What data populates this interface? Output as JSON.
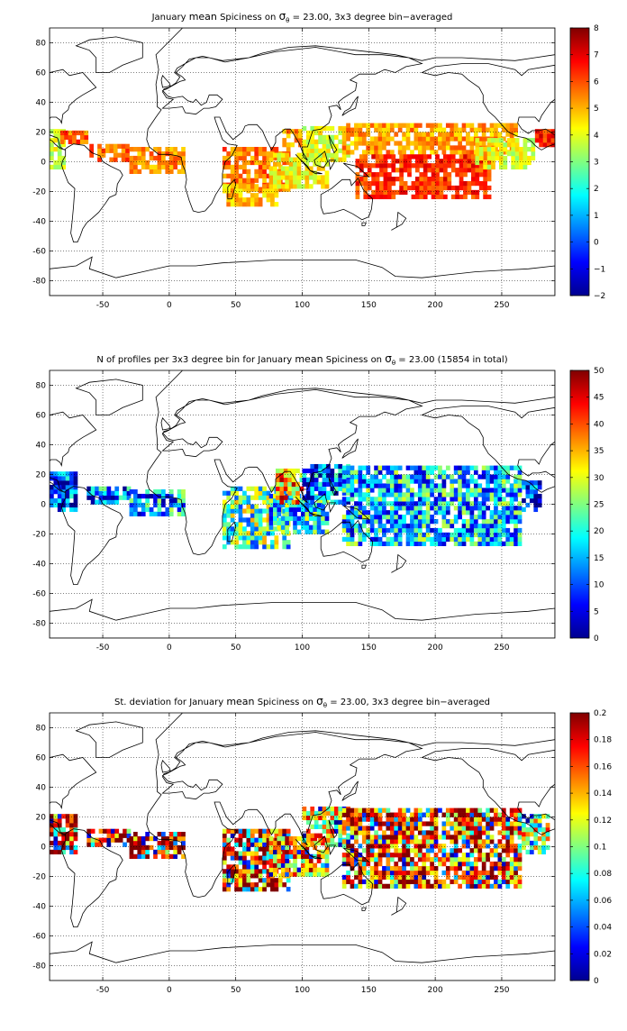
{
  "chart_data": [
    {
      "type": "heatmap",
      "title": {
        "pre": "January ",
        "mean": "mean",
        "mid": " Spiciness on ",
        "sigma": "σ",
        "sub": "θ",
        "post": " = 23.00, 3x3 degree bin−averaged"
      },
      "xlim": [
        -90,
        290
      ],
      "ylim": [
        -90,
        90
      ],
      "xticks": [
        -50,
        0,
        50,
        100,
        150,
        200,
        250
      ],
      "yticks": [
        -80,
        -60,
        -40,
        -20,
        0,
        20,
        40,
        60,
        80
      ],
      "grid": true,
      "colorbar": {
        "ticks": [
          "8",
          "7",
          "6",
          "5",
          "4",
          "3",
          "2",
          "1",
          "0",
          "−1",
          "−2"
        ],
        "range": [
          -2,
          8
        ]
      },
      "regions": [
        {
          "lon": [
            -90,
            -80
          ],
          "lat": [
            -5,
            20
          ],
          "value": 3.8
        },
        {
          "lon": [
            -82,
            -62
          ],
          "lat": [
            12,
            19
          ],
          "value": 5.8
        },
        {
          "lon": [
            -60,
            -30
          ],
          "lat": [
            0,
            12
          ],
          "value": 5.8
        },
        {
          "lon": [
            -30,
            10
          ],
          "lat": [
            -8,
            8
          ],
          "value": 5.4
        },
        {
          "lon": [
            40,
            90
          ],
          "lat": [
            -20,
            10
          ],
          "value": 5.6
        },
        {
          "lon": [
            40,
            80
          ],
          "lat": [
            -30,
            -15
          ],
          "value": 4.9
        },
        {
          "lon": [
            75,
            120
          ],
          "lat": [
            -18,
            5
          ],
          "value": 4.3
        },
        {
          "lon": [
            85,
            100
          ],
          "lat": [
            10,
            22
          ],
          "value": 5.2
        },
        {
          "lon": [
            100,
            135
          ],
          "lat": [
            0,
            22
          ],
          "value": 4.0
        },
        {
          "lon": [
            130,
            260
          ],
          "lat": [
            5,
            25
          ],
          "value": 5.2
        },
        {
          "lon": [
            140,
            240
          ],
          "lat": [
            -25,
            5
          ],
          "value": 6.3
        },
        {
          "lon": [
            230,
            275
          ],
          "lat": [
            -5,
            15
          ],
          "value": 4.0
        },
        {
          "lon": [
            275,
            290
          ],
          "lat": [
            10,
            20
          ],
          "value": 6.5
        }
      ]
    },
    {
      "type": "heatmap",
      "title": {
        "pre": "N of profiles per 3x3 degree bin for January ",
        "mean": "mean",
        "mid": " Spiciness on ",
        "sigma": "σ",
        "sub": "θ",
        "post": " = 23.00 (15854 in total)"
      },
      "xlim": [
        -90,
        290
      ],
      "ylim": [
        -90,
        90
      ],
      "xticks": [
        -50,
        0,
        50,
        100,
        150,
        200,
        250
      ],
      "yticks": [
        -80,
        -60,
        -40,
        -20,
        0,
        20,
        40,
        60,
        80
      ],
      "grid": true,
      "colorbar": {
        "ticks": [
          "50",
          "45",
          "40",
          "35",
          "30",
          "25",
          "20",
          "15",
          "10",
          "5",
          "0"
        ],
        "range": [
          0,
          50
        ]
      },
      "regions": [
        {
          "lon": [
            -90,
            -70
          ],
          "lat": [
            -5,
            20
          ],
          "value": 8
        },
        {
          "lon": [
            -62,
            -30
          ],
          "lat": [
            0,
            12
          ],
          "value": 12
        },
        {
          "lon": [
            -30,
            10
          ],
          "lat": [
            -8,
            8
          ],
          "value": 14
        },
        {
          "lon": [
            40,
            90
          ],
          "lat": [
            -30,
            10
          ],
          "value": 22
        },
        {
          "lon": [
            75,
            120
          ],
          "lat": [
            -20,
            5
          ],
          "value": 18
        },
        {
          "lon": [
            80,
            100
          ],
          "lat": [
            0,
            22
          ],
          "value": 35
        },
        {
          "lon": [
            100,
            135
          ],
          "lat": [
            0,
            25
          ],
          "value": 12
        },
        {
          "lon": [
            130,
            265
          ],
          "lat": [
            -28,
            25
          ],
          "value": 16
        },
        {
          "lon": [
            265,
            280
          ],
          "lat": [
            -5,
            15
          ],
          "value": 6
        }
      ]
    },
    {
      "type": "heatmap",
      "title": {
        "pre": "St. deviation for January ",
        "mean": "mean",
        "mid": " Spiciness on ",
        "sigma": "σ",
        "sub": "θ",
        "post": " = 23.00, 3x3 degree bin−averaged"
      },
      "xlim": [
        -90,
        290
      ],
      "ylim": [
        -90,
        90
      ],
      "xticks": [
        -50,
        0,
        50,
        100,
        150,
        200,
        250
      ],
      "yticks": [
        -80,
        -60,
        -40,
        -20,
        0,
        20,
        40,
        60,
        80
      ],
      "grid": true,
      "colorbar": {
        "ticks": [
          "0.2",
          "0.18",
          "0.16",
          "0.14",
          "0.12",
          "0.1",
          "0.08",
          "0.06",
          "0.04",
          "0.02",
          "0"
        ],
        "range": [
          0,
          0.2
        ]
      },
      "regions": [
        {
          "lon": [
            -90,
            -70
          ],
          "lat": [
            -5,
            20
          ],
          "value": 0.19
        },
        {
          "lon": [
            -62,
            -30
          ],
          "lat": [
            0,
            12
          ],
          "value": 0.19
        },
        {
          "lon": [
            -30,
            10
          ],
          "lat": [
            -8,
            8
          ],
          "value": 0.19
        },
        {
          "lon": [
            40,
            90
          ],
          "lat": [
            -30,
            10
          ],
          "value": 0.17
        },
        {
          "lon": [
            75,
            120
          ],
          "lat": [
            -20,
            5
          ],
          "value": 0.15
        },
        {
          "lon": [
            100,
            135
          ],
          "lat": [
            0,
            25
          ],
          "value": 0.13
        },
        {
          "lon": [
            130,
            265
          ],
          "lat": [
            -28,
            25
          ],
          "value": 0.17
        },
        {
          "lon": [
            265,
            285
          ],
          "lat": [
            -5,
            20
          ],
          "value": 0.12
        }
      ]
    }
  ],
  "colors": {
    "jet": [
      "#00008f",
      "#0000ff",
      "#0080ff",
      "#00ffff",
      "#80ff80",
      "#ffff00",
      "#ff8000",
      "#ff0000",
      "#800000"
    ],
    "land_outline": "#000000",
    "grid": "#000000",
    "background": "#ffffff"
  }
}
